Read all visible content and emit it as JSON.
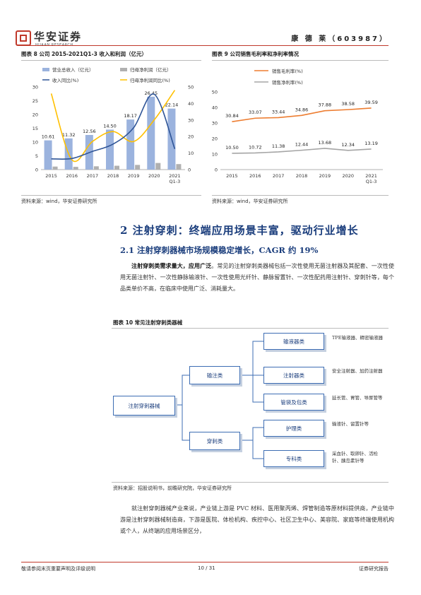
{
  "header": {
    "logo_cn": "华安证券",
    "logo_en": "HUAAN RESEARCH",
    "company": "康 德 莱（603987）"
  },
  "figure8": {
    "title": "图表 8 公司 2015-2021Q1-3 收入和利润（亿元）",
    "source": "资料来源：wind，华安证券研究所",
    "legend": [
      "营业总收入（亿元）",
      "归母净利润（亿元）",
      "收入同比(%)",
      "归母净利润同比(%)"
    ],
    "colors": {
      "revenue": "#9bb3de",
      "profit": "#b0b0b0",
      "rev_growth": "#2f5597",
      "profit_growth": "#ffc000"
    }
  },
  "figure9": {
    "title": "图表 9 公司销售毛利率和净利率情况",
    "source": "资料来源：wind，华安证券研究所",
    "legend": [
      "销售毛利率(%)",
      "销售净利率(%)"
    ],
    "colors": {
      "gross": "#ed7d31",
      "net": "#a5a5a5"
    }
  },
  "chart_data": [
    {
      "type": "bar",
      "categories": [
        "2015",
        "2016",
        "2017",
        "2018",
        "2019",
        "2020",
        "2021 Q1-3"
      ],
      "series": [
        {
          "name": "营业总收入（亿元）",
          "type": "bar",
          "axis": "left",
          "values": [
            10.61,
            11.32,
            12.56,
            14.5,
            18.17,
            26.45,
            22.14
          ]
        },
        {
          "name": "归母净利润（亿元）",
          "type": "bar",
          "axis": "left",
          "values": [
            1.1,
            1.0,
            1.2,
            1.4,
            1.7,
            2.4,
            2.0
          ]
        },
        {
          "name": "收入同比(%)",
          "type": "line",
          "axis": "right",
          "values": [
            6.5,
            6.7,
            11.0,
            15.4,
            25.3,
            45.6,
            12.5
          ]
        },
        {
          "name": "归母净利润同比(%)",
          "type": "line",
          "axis": "right",
          "values": [
            46.0,
            6.0,
            17.0,
            23.0,
            17.0,
            30.0,
            48.0
          ]
        }
      ],
      "ylim_left": [
        0,
        30
      ],
      "yticks_left": [
        0,
        5,
        10,
        15,
        20,
        25,
        30
      ],
      "ylim_right": [
        0,
        50
      ],
      "yticks_right": [
        0,
        10,
        20,
        30,
        40,
        50
      ],
      "legend_position": "top"
    },
    {
      "type": "line",
      "categories": [
        "2015",
        "2016",
        "2017",
        "2018",
        "2019",
        "2020",
        "2021 Q1-3"
      ],
      "series": [
        {
          "name": "销售毛利率(%)",
          "values": [
            30.84,
            33.07,
            33.44,
            34.86,
            37.88,
            38.58,
            39.59
          ]
        },
        {
          "name": "销售净利率(%)",
          "values": [
            10.5,
            10.72,
            11.38,
            12.44,
            13.68,
            12.34,
            13.19
          ]
        }
      ],
      "ylim": [
        0,
        50
      ],
      "yticks": [
        0,
        10,
        20,
        30,
        40,
        50
      ],
      "legend_position": "top-left"
    }
  ],
  "section": {
    "h2": "2 注射穿刺：终端应用场景丰富，驱动行业增长",
    "h3": "2.1 注射穿刺器械市场规模稳定增长，CAGR 约 19%",
    "para1_bold": "注射穿刺类需求量大，应用广泛",
    "para1_rest": "。常见的注射穿刺类器械包括一次性使用无菌注射器及其配套、一次性使用无菌注射针、一次性静脉输液针、一次性使用光纤针、静脉留置针、一次性配药用注射针、穿刺针等，每个品类单价不高，在临床中使用广泛、消耗量大。",
    "para2": "就注射穿刺器械产业来说，产业链上游是 PVC 材料、医用聚丙烯、焊管制造等原材料提供商，产业链中游是注射穿刺器械制造商，下游是医院、体检机构、疾控中心、社区卫生中心、美容院、家庭等终端使用机构或个人，从终端的应用场景区分，"
  },
  "figure10": {
    "title": "图表 10 常见注射穿刺类器械",
    "source": "资料来源：招股说明书，前瞻研究院，华安证券研究所",
    "root": "注射穿刺器械",
    "level1": [
      "输注类",
      "穿刺类"
    ],
    "level2": [
      "输液器类",
      "注射器类",
      "管袋及包类",
      "护理类",
      "专科类"
    ],
    "descriptions": [
      "TPE输液器、精密输液器",
      "安全注射器、加药注射器",
      "延长管、胃管、导尿管等",
      "输液针、留置针等",
      "采血针、取卵针、活检针、胰岛素针等"
    ]
  },
  "footer": {
    "left": "敬请参阅末页重要声明及评级说明",
    "page": "10 / 31",
    "right": "证券研究报告"
  }
}
